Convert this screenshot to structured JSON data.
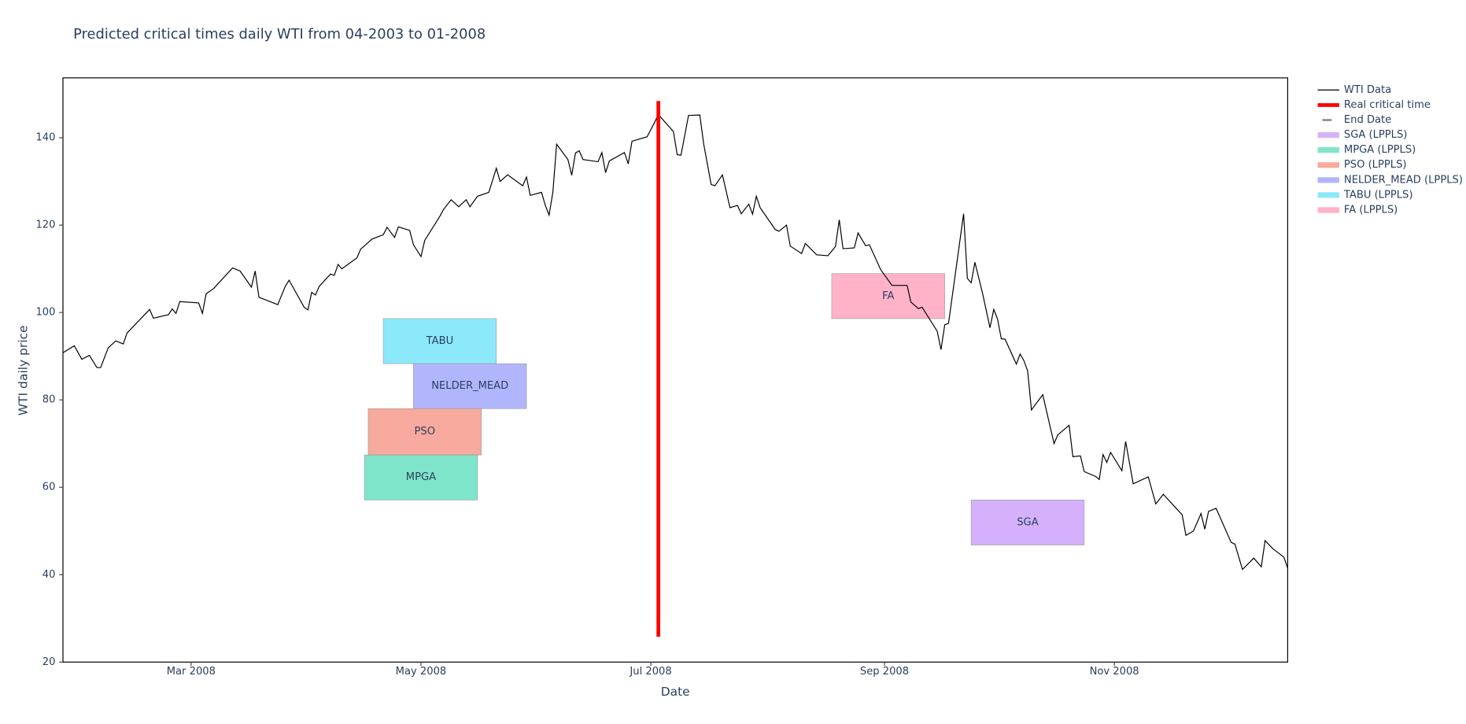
{
  "chart_data": {
    "type": "line",
    "title": "Predicted critical times daily WTI from 04-2003 to 01-2008",
    "x_label": "Date",
    "y_label": "WTI daily price",
    "xlim": [
      "2008-01-27",
      "2008-12-17"
    ],
    "ylim": [
      20,
      153.7
    ],
    "xticks": [
      {
        "value": "2008-03-01",
        "label": "Mar 2008"
      },
      {
        "value": "2008-05-01",
        "label": "May 2008"
      },
      {
        "value": "2008-07-01",
        "label": "Jul 2008"
      },
      {
        "value": "2008-09-01",
        "label": "Sep 2008"
      },
      {
        "value": "2008-11-01",
        "label": "Nov 2008"
      }
    ],
    "yticks": [
      20,
      40,
      60,
      80,
      100,
      120,
      140
    ],
    "series": [
      {
        "name": "WTI Data",
        "color": "#000000",
        "width": 1,
        "x": [
          "2008-01-27",
          "2008-01-30",
          "2008-02-01",
          "2008-02-03",
          "2008-02-05",
          "2008-02-06",
          "2008-02-08",
          "2008-02-10",
          "2008-02-12",
          "2008-02-13",
          "2008-02-19",
          "2008-02-20",
          "2008-02-24",
          "2008-02-25",
          "2008-02-26",
          "2008-02-27",
          "2008-03-03",
          "2008-03-04",
          "2008-03-05",
          "2008-03-07",
          "2008-03-12",
          "2008-03-14",
          "2008-03-17",
          "2008-03-18",
          "2008-03-19",
          "2008-03-24",
          "2008-03-26",
          "2008-03-27",
          "2008-03-31",
          "2008-04-01",
          "2008-04-02",
          "2008-04-03",
          "2008-04-04",
          "2008-04-07",
          "2008-04-08",
          "2008-04-09",
          "2008-04-10",
          "2008-04-14",
          "2008-04-15",
          "2008-04-18",
          "2008-04-21",
          "2008-04-22",
          "2008-04-24",
          "2008-04-25",
          "2008-04-28",
          "2008-04-29",
          "2008-05-01",
          "2008-05-02",
          "2008-05-06",
          "2008-05-07",
          "2008-05-09",
          "2008-05-11",
          "2008-05-13",
          "2008-05-14",
          "2008-05-16",
          "2008-05-19",
          "2008-05-21",
          "2008-05-22",
          "2008-05-24",
          "2008-05-28",
          "2008-05-29",
          "2008-05-30",
          "2008-06-02",
          "2008-06-03",
          "2008-06-04",
          "2008-06-05",
          "2008-06-06",
          "2008-06-09",
          "2008-06-10",
          "2008-06-11",
          "2008-06-12",
          "2008-06-13",
          "2008-06-17",
          "2008-06-18",
          "2008-06-19",
          "2008-06-20",
          "2008-06-24",
          "2008-06-25",
          "2008-06-26",
          "2008-06-30",
          "2008-07-02",
          "2008-07-03",
          "2008-07-07",
          "2008-07-08",
          "2008-07-09",
          "2008-07-11",
          "2008-07-14",
          "2008-07-15",
          "2008-07-17",
          "2008-07-18",
          "2008-07-20",
          "2008-07-22",
          "2008-07-24",
          "2008-07-25",
          "2008-07-27",
          "2008-07-28",
          "2008-07-29",
          "2008-07-30",
          "2008-08-03",
          "2008-08-04",
          "2008-08-06",
          "2008-08-07",
          "2008-08-10",
          "2008-08-11",
          "2008-08-14",
          "2008-08-17",
          "2008-08-19",
          "2008-08-20",
          "2008-08-21",
          "2008-08-24",
          "2008-08-25",
          "2008-08-27",
          "2008-08-28",
          "2008-08-31",
          "2008-09-03",
          "2008-09-07",
          "2008-09-08",
          "2008-09-10",
          "2008-09-11",
          "2008-09-15",
          "2008-09-16",
          "2008-09-17",
          "2008-09-18",
          "2008-09-22",
          "2008-09-23",
          "2008-09-24",
          "2008-09-25",
          "2008-09-27",
          "2008-09-29",
          "2008-09-30",
          "2008-10-01",
          "2008-10-02",
          "2008-10-03",
          "2008-10-06",
          "2008-10-07",
          "2008-10-08",
          "2008-10-09",
          "2008-10-10",
          "2008-10-13",
          "2008-10-16",
          "2008-10-17",
          "2008-10-20",
          "2008-10-21",
          "2008-10-23",
          "2008-10-24",
          "2008-10-27",
          "2008-10-28",
          "2008-10-29",
          "2008-10-30",
          "2008-10-31",
          "2008-11-03",
          "2008-11-04",
          "2008-11-06",
          "2008-11-10",
          "2008-11-12",
          "2008-11-14",
          "2008-11-19",
          "2008-11-20",
          "2008-11-22",
          "2008-11-24",
          "2008-11-25",
          "2008-11-26",
          "2008-11-28",
          "2008-12-02",
          "2008-12-03",
          "2008-12-05",
          "2008-12-08",
          "2008-12-10",
          "2008-12-11",
          "2008-12-13",
          "2008-12-16",
          "2008-12-17"
        ],
        "values": [
          90.8,
          92.4,
          89.3,
          90.2,
          87.4,
          87.4,
          91.9,
          93.5,
          92.8,
          95.3,
          100.7,
          98.7,
          99.5,
          100.8,
          99.8,
          102.5,
          102.2,
          99.8,
          104.3,
          105.5,
          110.2,
          109.5,
          105.8,
          109.5,
          103.5,
          101.8,
          106,
          107.4,
          101.2,
          100.6,
          104.6,
          104,
          106,
          108.8,
          108.5,
          111,
          110,
          112.5,
          114.5,
          116.8,
          117.8,
          119.5,
          117.2,
          119.6,
          118.8,
          115.5,
          112.8,
          116.5,
          122,
          123.6,
          125.8,
          124.2,
          125.8,
          124.2,
          126.6,
          127.5,
          133,
          130,
          131.5,
          129,
          131,
          126.8,
          127.5,
          124.5,
          122.3,
          127.5,
          138.5,
          135,
          131.4,
          136.5,
          137,
          135,
          134.5,
          136.6,
          132,
          134.7,
          136.6,
          134,
          139.2,
          140.2,
          143.5,
          145.3,
          141.4,
          136.1,
          136,
          145.1,
          145.2,
          138.7,
          129.3,
          129,
          131.5,
          124,
          124.5,
          122.6,
          124.8,
          122.5,
          126.6,
          124,
          119,
          118.6,
          120,
          115.2,
          113.5,
          115.8,
          113.2,
          113,
          115.1,
          121.2,
          114.6,
          114.8,
          118.2,
          115.3,
          115.5,
          109.8,
          106.2,
          106.2,
          102.4,
          100.9,
          101.2,
          95.7,
          91.5,
          97.2,
          97.5,
          122.6,
          107.8,
          106.8,
          111.5,
          104.5,
          96.5,
          100.7,
          98.5,
          94,
          93.9,
          88.2,
          90.5,
          89,
          86.6,
          77.7,
          81.2,
          70,
          72,
          74.2,
          67,
          67.2,
          63.6,
          62.5,
          61.8,
          67.5,
          65.7,
          68,
          63.8,
          70.5,
          60.8,
          62.4,
          56.2,
          58.4,
          53.7,
          49,
          50,
          54,
          50.4,
          54.5,
          55.2,
          47.4,
          47,
          41.2,
          43.8,
          41.8,
          47.8,
          46,
          44,
          41.5
        ]
      },
      {
        "name": "Real critical time",
        "color": "#ff0000",
        "width": 4,
        "x": [
          "2008-07-03",
          "2008-07-03"
        ],
        "values": [
          25.8,
          148.4
        ]
      },
      {
        "name": "End Date",
        "color": "#808080",
        "width": 2,
        "dash": true,
        "x": [],
        "values": []
      }
    ],
    "intervals": [
      {
        "name": "SGA (LPPLS)",
        "label": "SGA",
        "color": "#AB63FA",
        "opacity": 0.5,
        "x": [
          "2008-09-24",
          "2008-10-24"
        ],
        "y": [
          46.8,
          57.1
        ]
      },
      {
        "name": "MPGA (LPPLS)",
        "label": "MPGA",
        "color": "#00CC96",
        "opacity": 0.5,
        "x": [
          "2008-04-16",
          "2008-05-16"
        ],
        "y": [
          57.1,
          67.4
        ]
      },
      {
        "name": "PSO (LPPLS)",
        "label": "PSO",
        "color": "#EF553B",
        "opacity": 0.5,
        "x": [
          "2008-04-17",
          "2008-05-17"
        ],
        "y": [
          67.4,
          78.0
        ]
      },
      {
        "name": "NELDER_MEAD (LPPLS)",
        "label": "NELDER_MEAD",
        "color": "#636EFA",
        "opacity": 0.5,
        "x": [
          "2008-04-29",
          "2008-05-29"
        ],
        "y": [
          78.0,
          88.3
        ]
      },
      {
        "name": "TABU (LPPLS)",
        "label": "TABU",
        "color": "#19D3F3",
        "opacity": 0.5,
        "x": [
          "2008-04-21",
          "2008-05-21"
        ],
        "y": [
          88.3,
          98.6
        ]
      },
      {
        "name": "FA (LPPLS)",
        "label": "FA",
        "color": "#FF6692",
        "opacity": 0.5,
        "x": [
          "2008-08-18",
          "2008-09-17"
        ],
        "y": [
          98.6,
          108.9
        ]
      }
    ]
  }
}
